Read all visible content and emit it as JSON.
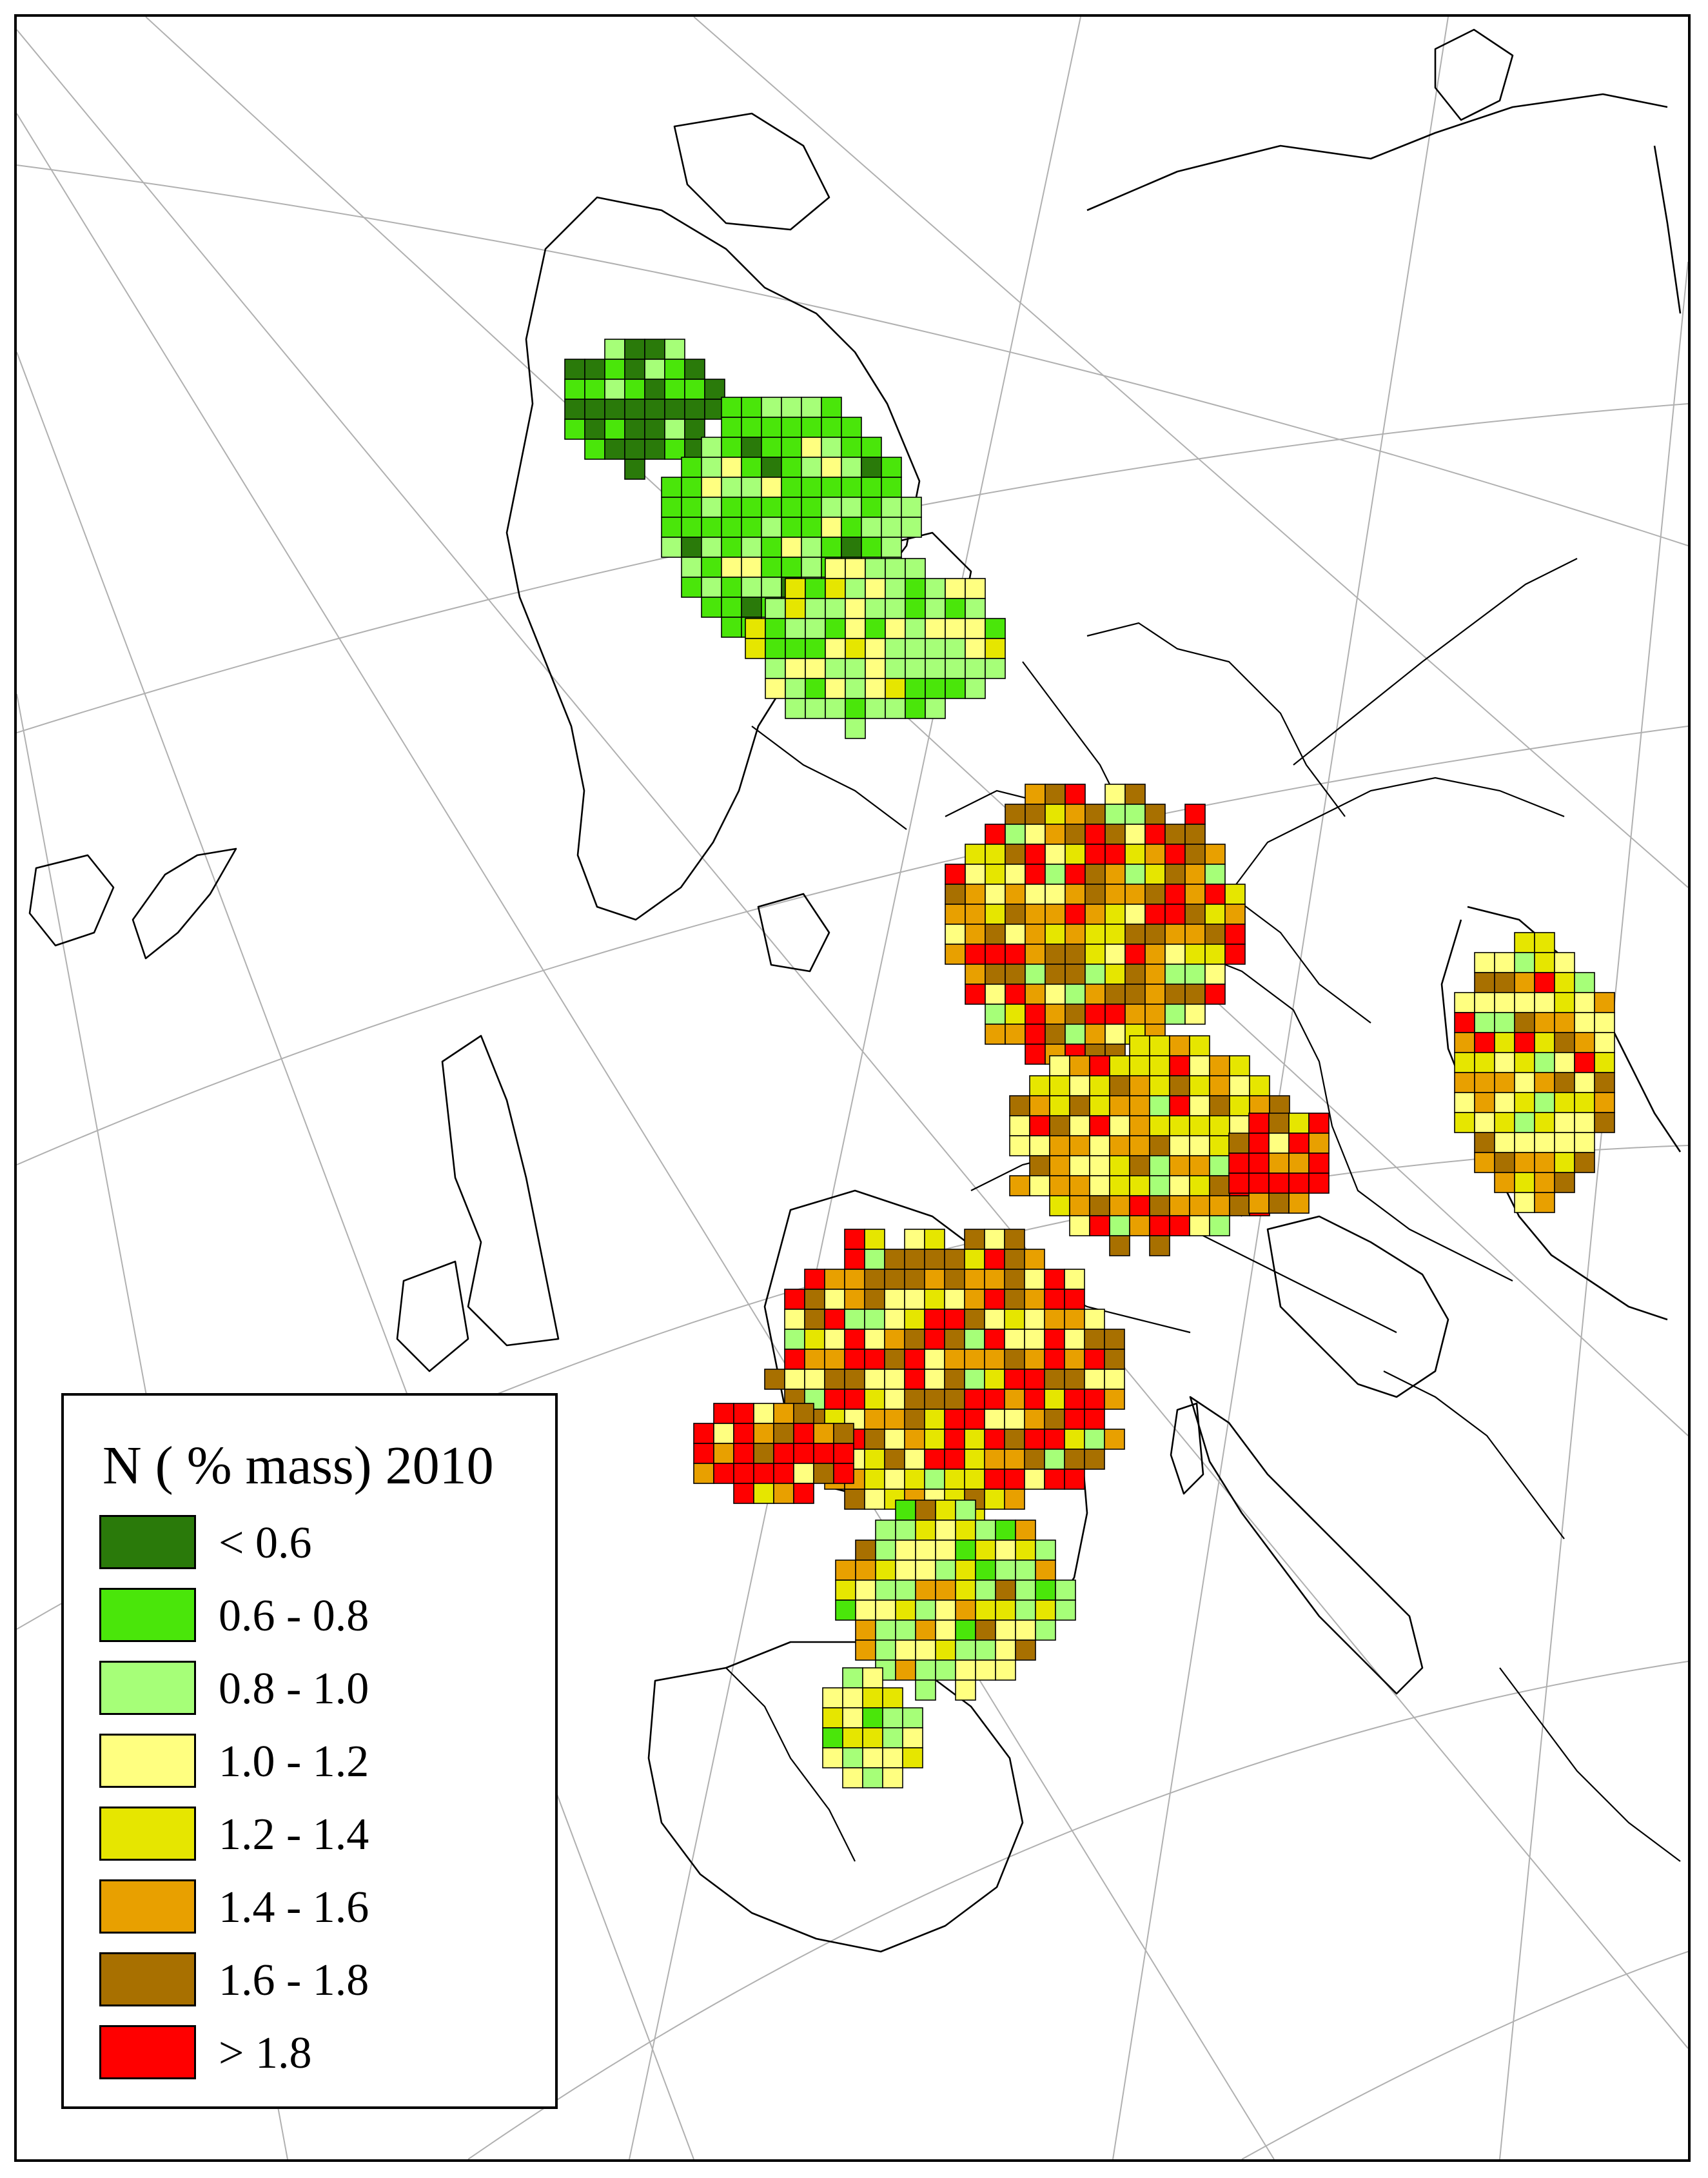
{
  "legend": {
    "title": "N ( % mass) 2010",
    "classes": [
      {
        "label": "< 0.6",
        "color": "#2a7a0a"
      },
      {
        "label": "0.6 - 0.8",
        "color": "#4ae60a"
      },
      {
        "label": "0.8 - 1.0",
        "color": "#a6ff78"
      },
      {
        "label": "1.0 - 1.2",
        "color": "#ffff80"
      },
      {
        "label": "1.2 - 1.4",
        "color": "#e6e600"
      },
      {
        "label": "1.4 - 1.6",
        "color": "#e8a000"
      },
      {
        "label": "1.6 - 1.8",
        "color": "#a87000"
      },
      {
        "label": "> 1.8",
        "color": "#ff0000"
      }
    ]
  },
  "colors": {
    "frame": "#000000",
    "graticule": "#b0b0b0",
    "coastline": "#000000",
    "background": "#ffffff"
  }
}
